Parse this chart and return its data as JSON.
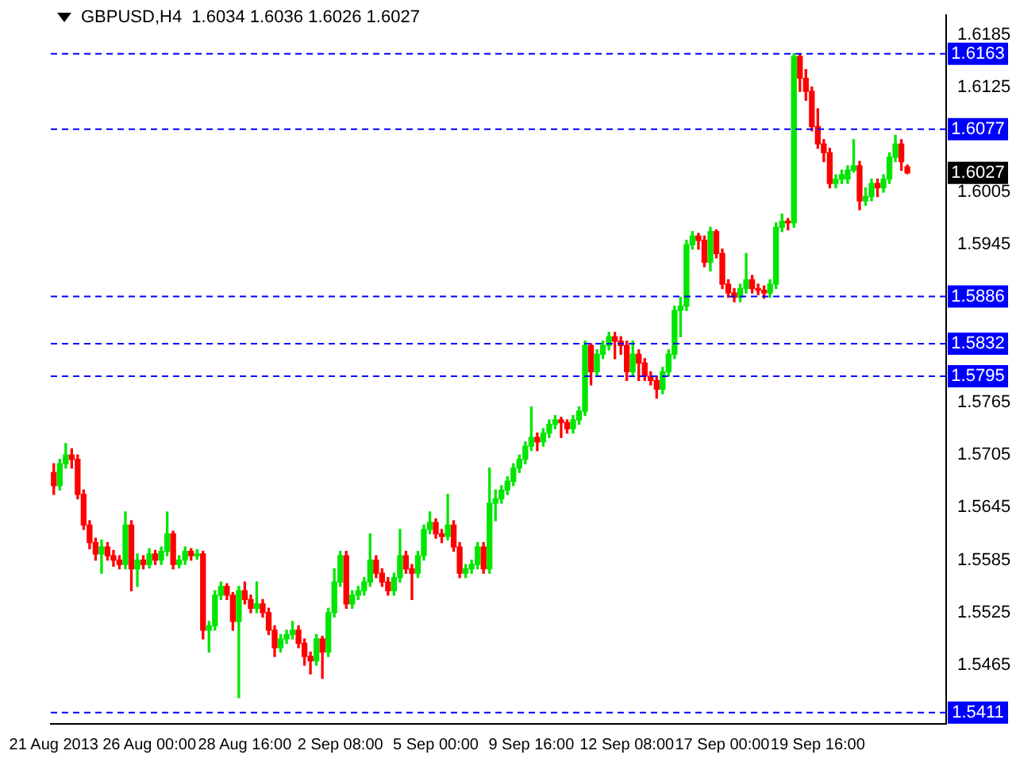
{
  "chart_data": {
    "type": "candlestick",
    "title": "GBPUSD,H4  1.6034 1.6036 1.6026 1.6027",
    "categories": [
      "21 Aug 2013",
      null,
      null,
      null,
      null,
      null,
      null,
      null,
      null,
      null,
      null,
      null,
      null,
      null,
      null,
      null,
      "26 Aug 00:00",
      null,
      null,
      null,
      null,
      null,
      null,
      null,
      null,
      null,
      null,
      null,
      null,
      null,
      null,
      null,
      "28 Aug 16:00",
      null,
      null,
      null,
      null,
      null,
      null,
      null,
      null,
      null,
      null,
      null,
      null,
      null,
      null,
      null,
      "2 Sep 08:00",
      null,
      null,
      null,
      null,
      null,
      null,
      null,
      null,
      null,
      null,
      null,
      null,
      null,
      null,
      null,
      "5 Sep 00:00",
      null,
      null,
      null,
      null,
      null,
      null,
      null,
      null,
      null,
      null,
      null,
      null,
      null,
      null,
      null,
      "9 Sep 16:00",
      null,
      null,
      null,
      null,
      null,
      null,
      null,
      null,
      null,
      null,
      null,
      null,
      null,
      null,
      null,
      "12 Sep 08:00",
      null,
      null,
      null,
      null,
      null,
      null,
      null,
      null,
      null,
      null,
      null,
      null,
      null,
      null,
      null,
      "17 Sep 00:00",
      null,
      null,
      null,
      null,
      null,
      null,
      null,
      null,
      null,
      null,
      null,
      null,
      null,
      null,
      null,
      "19 Sep 16:00",
      null,
      null,
      null,
      null,
      null,
      null,
      null,
      null,
      null,
      null,
      null,
      null,
      null,
      null,
      null,
      null,
      null,
      null,
      null,
      null,
      null
    ],
    "ohlc": [
      [
        1.5685,
        1.5695,
        1.566,
        1.567
      ],
      [
        1.567,
        1.57,
        1.5665,
        1.5695
      ],
      [
        1.5695,
        1.5718,
        1.569,
        1.5705
      ],
      [
        1.5705,
        1.5712,
        1.569,
        1.57
      ],
      [
        1.57,
        1.5705,
        1.5655,
        1.566
      ],
      [
        1.566,
        1.5665,
        1.562,
        1.5625
      ],
      [
        1.5625,
        1.563,
        1.5598,
        1.5605
      ],
      [
        1.5605,
        1.561,
        1.5585,
        1.5592
      ],
      [
        1.5592,
        1.5608,
        1.557,
        1.56
      ],
      [
        1.56,
        1.5605,
        1.5585,
        1.559
      ],
      [
        1.559,
        1.5596,
        1.5578,
        1.5585
      ],
      [
        1.5585,
        1.559,
        1.5575,
        1.558
      ],
      [
        1.558,
        1.564,
        1.5575,
        1.5625
      ],
      [
        1.5625,
        1.563,
        1.555,
        1.5575
      ],
      [
        1.5575,
        1.5592,
        1.5555,
        1.5585
      ],
      [
        1.5585,
        1.559,
        1.5575,
        1.558
      ],
      [
        1.558,
        1.5598,
        1.5576,
        1.5592
      ],
      [
        1.5592,
        1.5596,
        1.558,
        1.5585
      ],
      [
        1.5585,
        1.56,
        1.558,
        1.5595
      ],
      [
        1.5595,
        1.564,
        1.559,
        1.5615
      ],
      [
        1.5615,
        1.5618,
        1.5575,
        1.558
      ],
      [
        1.558,
        1.559,
        1.5576,
        1.5585
      ],
      [
        1.5585,
        1.56,
        1.558,
        1.5595
      ],
      [
        1.5595,
        1.5598,
        1.5585,
        1.559
      ],
      [
        1.559,
        1.5597,
        1.5586,
        1.5592
      ],
      [
        1.5592,
        1.5595,
        1.5495,
        1.5505
      ],
      [
        1.5505,
        1.5515,
        1.548,
        1.551
      ],
      [
        1.551,
        1.555,
        1.5505,
        1.5545
      ],
      [
        1.5545,
        1.556,
        1.554,
        1.5555
      ],
      [
        1.5555,
        1.5558,
        1.554,
        1.5545
      ],
      [
        1.5545,
        1.5548,
        1.5505,
        1.5515
      ],
      [
        1.5515,
        1.5555,
        1.5428,
        1.555
      ],
      [
        1.555,
        1.556,
        1.5535,
        1.554
      ],
      [
        1.554,
        1.5545,
        1.5525,
        1.553
      ],
      [
        1.553,
        1.556,
        1.5525,
        1.5535
      ],
      [
        1.5535,
        1.554,
        1.552,
        1.5525
      ],
      [
        1.5525,
        1.553,
        1.55,
        1.5505
      ],
      [
        1.5505,
        1.551,
        1.5475,
        1.5485
      ],
      [
        1.5485,
        1.55,
        1.548,
        1.5495
      ],
      [
        1.5495,
        1.5505,
        1.549,
        1.55
      ],
      [
        1.55,
        1.5515,
        1.5495,
        1.5505
      ],
      [
        1.5505,
        1.551,
        1.5485,
        1.549
      ],
      [
        1.549,
        1.5495,
        1.5465,
        1.5475
      ],
      [
        1.5475,
        1.548,
        1.5455,
        1.547
      ],
      [
        1.547,
        1.55,
        1.5465,
        1.5495
      ],
      [
        1.5495,
        1.5498,
        1.545,
        1.548
      ],
      [
        1.548,
        1.553,
        1.5475,
        1.5525
      ],
      [
        1.5525,
        1.5575,
        1.552,
        1.556
      ],
      [
        1.556,
        1.5595,
        1.5555,
        1.559
      ],
      [
        1.559,
        1.5595,
        1.553,
        1.5535
      ],
      [
        1.5535,
        1.555,
        1.553,
        1.5545
      ],
      [
        1.5545,
        1.5555,
        1.554,
        1.555
      ],
      [
        1.555,
        1.5565,
        1.5545,
        1.556
      ],
      [
        1.556,
        1.5615,
        1.5555,
        1.5585
      ],
      [
        1.5585,
        1.559,
        1.5565,
        1.557
      ],
      [
        1.557,
        1.5575,
        1.5555,
        1.556
      ],
      [
        1.556,
        1.5565,
        1.5545,
        1.555
      ],
      [
        1.555,
        1.557,
        1.5545,
        1.5565
      ],
      [
        1.5565,
        1.562,
        1.556,
        1.559
      ],
      [
        1.559,
        1.5595,
        1.557,
        1.5575
      ],
      [
        1.5575,
        1.558,
        1.554,
        1.557
      ],
      [
        1.557,
        1.5595,
        1.5565,
        1.559
      ],
      [
        1.559,
        1.5625,
        1.5585,
        1.562
      ],
      [
        1.562,
        1.564,
        1.5615,
        1.5628
      ],
      [
        1.5628,
        1.5632,
        1.561,
        1.5615
      ],
      [
        1.5615,
        1.562,
        1.5605,
        1.5612
      ],
      [
        1.5612,
        1.566,
        1.5608,
        1.5625
      ],
      [
        1.5625,
        1.563,
        1.5595,
        1.56
      ],
      [
        1.56,
        1.5605,
        1.5565,
        1.557
      ],
      [
        1.557,
        1.558,
        1.5565,
        1.5575
      ],
      [
        1.5575,
        1.5585,
        1.557,
        1.558
      ],
      [
        1.558,
        1.5605,
        1.5575,
        1.56
      ],
      [
        1.56,
        1.5605,
        1.557,
        1.5575
      ],
      [
        1.5575,
        1.569,
        1.557,
        1.565
      ],
      [
        1.565,
        1.5665,
        1.563,
        1.5655
      ],
      [
        1.5655,
        1.567,
        1.565,
        1.5665
      ],
      [
        1.5665,
        1.568,
        1.566,
        1.5675
      ],
      [
        1.5675,
        1.5695,
        1.567,
        1.569
      ],
      [
        1.569,
        1.5705,
        1.5685,
        1.57
      ],
      [
        1.57,
        1.572,
        1.5695,
        1.5715
      ],
      [
        1.5715,
        1.576,
        1.571,
        1.5725
      ],
      [
        1.5725,
        1.573,
        1.571,
        1.572
      ],
      [
        1.572,
        1.5735,
        1.5715,
        1.573
      ],
      [
        1.573,
        1.5745,
        1.5725,
        1.574
      ],
      [
        1.574,
        1.575,
        1.5735,
        1.5745
      ],
      [
        1.5745,
        1.5748,
        1.5725,
        1.5742
      ],
      [
        1.5742,
        1.5745,
        1.573,
        1.5735
      ],
      [
        1.5735,
        1.575,
        1.573,
        1.5745
      ],
      [
        1.5745,
        1.576,
        1.574,
        1.5755
      ],
      [
        1.5755,
        1.5835,
        1.575,
        1.583
      ],
      [
        1.583,
        1.5832,
        1.5785,
        1.58
      ],
      [
        1.58,
        1.5825,
        1.5795,
        1.582
      ],
      [
        1.582,
        1.5835,
        1.5815,
        1.583
      ],
      [
        1.583,
        1.5845,
        1.5825,
        1.584
      ],
      [
        1.584,
        1.5845,
        1.5815,
        1.5835
      ],
      [
        1.5835,
        1.584,
        1.582,
        1.583
      ],
      [
        1.583,
        1.5835,
        1.579,
        1.58
      ],
      [
        1.58,
        1.5835,
        1.5795,
        1.582
      ],
      [
        1.582,
        1.5825,
        1.579,
        1.581
      ],
      [
        1.581,
        1.5815,
        1.579,
        1.5795
      ],
      [
        1.5795,
        1.58,
        1.5785,
        1.579
      ],
      [
        1.579,
        1.5795,
        1.577,
        1.578
      ],
      [
        1.578,
        1.5805,
        1.5775,
        1.58
      ],
      [
        1.58,
        1.5825,
        1.5795,
        1.582
      ],
      [
        1.582,
        1.5875,
        1.5815,
        1.587
      ],
      [
        1.587,
        1.5885,
        1.584,
        1.5875
      ],
      [
        1.5875,
        1.595,
        1.587,
        1.5945
      ],
      [
        1.5945,
        1.596,
        1.594,
        1.5955
      ],
      [
        1.5955,
        1.5958,
        1.594,
        1.595
      ],
      [
        1.595,
        1.5955,
        1.592,
        1.5925
      ],
      [
        1.5925,
        1.5965,
        1.5915,
        1.596
      ],
      [
        1.596,
        1.5962,
        1.593,
        1.5935
      ],
      [
        1.5935,
        1.594,
        1.5895,
        1.59
      ],
      [
        1.59,
        1.5905,
        1.5885,
        1.589
      ],
      [
        1.589,
        1.5895,
        1.588,
        1.5885
      ],
      [
        1.5885,
        1.59,
        1.588,
        1.5895
      ],
      [
        1.5895,
        1.5935,
        1.589,
        1.5905
      ],
      [
        1.5905,
        1.591,
        1.589,
        1.5895
      ],
      [
        1.5895,
        1.59,
        1.5888,
        1.5893
      ],
      [
        1.5893,
        1.5898,
        1.5884,
        1.589
      ],
      [
        1.589,
        1.5905,
        1.5885,
        1.59
      ],
      [
        1.59,
        1.597,
        1.5895,
        1.5965
      ],
      [
        1.5965,
        1.598,
        1.596,
        1.5972
      ],
      [
        1.5972,
        1.5975,
        1.5962,
        1.597
      ],
      [
        1.597,
        1.6163,
        1.5965,
        1.616
      ],
      [
        1.616,
        1.6162,
        1.612,
        1.6135
      ],
      [
        1.6135,
        1.6145,
        1.611,
        1.612
      ],
      [
        1.612,
        1.6125,
        1.6075,
        1.608
      ],
      [
        1.608,
        1.61,
        1.6055,
        1.606
      ],
      [
        1.606,
        1.6065,
        1.604,
        1.605
      ],
      [
        1.605,
        1.6055,
        1.601,
        1.6015
      ],
      [
        1.6015,
        1.6025,
        1.601,
        1.602
      ],
      [
        1.602,
        1.603,
        1.6015,
        1.6025
      ],
      [
        1.602,
        1.6035,
        1.6015,
        1.603
      ],
      [
        1.603,
        1.6065,
        1.6028,
        1.6035
      ],
      [
        1.6035,
        1.604,
        1.5985,
        1.5995
      ],
      [
        1.5995,
        1.601,
        1.599,
        1.6
      ],
      [
        1.6,
        1.602,
        1.5995,
        1.6015
      ],
      [
        1.6015,
        1.602,
        1.6,
        1.601
      ],
      [
        1.601,
        1.6025,
        1.6005,
        1.602
      ],
      [
        1.602,
        1.605,
        1.6015,
        1.6045
      ],
      [
        1.6045,
        1.607,
        1.604,
        1.606
      ],
      [
        1.606,
        1.6065,
        1.603,
        1.604
      ],
      [
        1.6034,
        1.6036,
        1.6026,
        1.6027
      ],
      null,
      null,
      null,
      null,
      null,
      null
    ],
    "colors": [
      "#ff0000",
      "#00e600",
      "#00e600",
      "#ff0000",
      "#ff0000",
      "#ff0000",
      "#ff0000",
      "#ff0000",
      "#00e600",
      "#ff0000",
      "#ff0000",
      "#ff0000",
      "#00e600",
      "#ff0000",
      "#00e600",
      "#ff0000",
      "#00e600",
      "#ff0000",
      "#00e600",
      "#00e600",
      "#ff0000",
      "#00e600",
      "#00e600",
      "#ff0000",
      "#00e600",
      "#ff0000",
      "#00e600",
      "#00e600",
      "#00e600",
      "#ff0000",
      "#ff0000",
      "#00e600",
      "#ff0000",
      "#ff0000",
      "#00e600",
      "#ff0000",
      "#ff0000",
      "#ff0000",
      "#00e600",
      "#00e600",
      "#00e600",
      "#ff0000",
      "#ff0000",
      "#ff0000",
      "#00e600",
      "#ff0000",
      "#00e600",
      "#00e600",
      "#00e600",
      "#ff0000",
      "#00e600",
      "#00e600",
      "#00e600",
      "#00e600",
      "#ff0000",
      "#ff0000",
      "#ff0000",
      "#00e600",
      "#00e600",
      "#ff0000",
      "#ff0000",
      "#00e600",
      "#00e600",
      "#00e600",
      "#ff0000",
      "#ff0000",
      "#00e600",
      "#ff0000",
      "#ff0000",
      "#00e600",
      "#00e600",
      "#00e600",
      "#ff0000",
      "#00e600",
      "#00e600",
      "#00e600",
      "#00e600",
      "#00e600",
      "#00e600",
      "#00e600",
      "#00e600",
      "#ff0000",
      "#00e600",
      "#00e600",
      "#00e600",
      "#ff0000",
      "#ff0000",
      "#00e600",
      "#00e600",
      "#00e600",
      "#ff0000",
      "#00e600",
      "#00e600",
      "#00e600",
      "#ff0000",
      "#ff0000",
      "#ff0000",
      "#00e600",
      "#ff0000",
      "#ff0000",
      "#ff0000",
      "#ff0000",
      "#00e600",
      "#00e600",
      "#00e600",
      "#00e600",
      "#00e600",
      "#00e600",
      "#ff0000",
      "#ff0000",
      "#00e600",
      "#ff0000",
      "#ff0000",
      "#ff0000",
      "#ff0000",
      "#00e600",
      "#00e600",
      "#ff0000",
      "#ff0000",
      "#ff0000",
      "#00e600",
      "#00e600",
      "#00e600",
      "#ff0000",
      "#00e600",
      "#ff0000",
      "#ff0000",
      "#ff0000",
      "#ff0000",
      "#ff0000",
      "#ff0000",
      "#00e600",
      "#00e600",
      "#00e600",
      "#00e600",
      "#ff0000",
      "#00e600",
      "#00e600",
      "#ff0000",
      "#00e600",
      "#00e600",
      "#00e600",
      "#ff0000",
      "#ff0000",
      null,
      null,
      null,
      null,
      null,
      null
    ],
    "ylim": [
      1.5398,
      1.6207
    ],
    "yticks": [
      1.6185,
      1.6125,
      1.6005,
      1.5945,
      1.5765,
      1.5705,
      1.5645,
      1.5585,
      1.5525,
      1.5465
    ],
    "ref_lines": [
      {
        "axis": "y",
        "value": 1.6163,
        "label": "1.6163",
        "color": "#0000ff",
        "line_style": "dashed"
      },
      {
        "axis": "y",
        "value": 1.6077,
        "label": "1.6077",
        "color": "#0000ff",
        "line_style": "dashed"
      },
      {
        "axis": "y",
        "value": 1.5886,
        "label": "1.5886",
        "color": "#0000ff",
        "line_style": "dashed"
      },
      {
        "axis": "y",
        "value": 1.5832,
        "label": "1.5832",
        "color": "#0000ff",
        "line_style": "dashed"
      },
      {
        "axis": "y",
        "value": 1.5795,
        "label": "1.5795",
        "color": "#0000ff",
        "line_style": "dashed"
      },
      {
        "axis": "y",
        "value": 1.5411,
        "label": "1.5411",
        "color": "#0000ff",
        "line_style": "dashed"
      }
    ],
    "annotations": [
      {
        "text": "1.6027",
        "y": 1.6027
      }
    ],
    "grid": false,
    "legend": false
  }
}
